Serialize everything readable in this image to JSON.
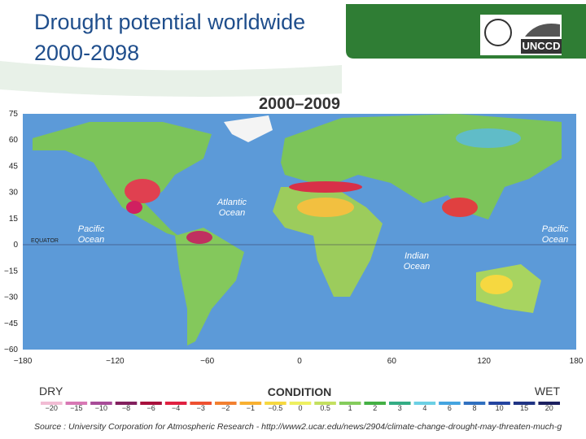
{
  "slide": {
    "title_lines": [
      "Drought potential worldwide",
      "2000-2098"
    ],
    "logo_text": "UNCCD",
    "map": {
      "title": "2000–2009",
      "lat_labels": [
        "75",
        "60",
        "45",
        "30",
        "15",
        "0",
        "−15",
        "−30",
        "−45",
        "−60"
      ],
      "lon_labels": [
        "−180",
        "−120",
        "−60",
        "0",
        "60",
        "120",
        "180"
      ],
      "equator_label": "EQUATOR",
      "ocean_labels": [
        [
          "Pacific",
          "Ocean"
        ],
        [
          "Atlantic",
          "Ocean"
        ],
        [
          "Indian",
          "Ocean"
        ],
        [
          "Pacific",
          "Ocean"
        ]
      ]
    },
    "legend": {
      "dry": "DRY",
      "title": "CONDITION",
      "wet": "WET",
      "items": [
        {
          "label": "−20",
          "color": "#f2bcd4"
        },
        {
          "label": "−15",
          "color": "#d878b4"
        },
        {
          "label": "−10",
          "color": "#a84c98"
        },
        {
          "label": "−8",
          "color": "#82205e"
        },
        {
          "label": "−6",
          "color": "#a8103c"
        },
        {
          "label": "−4",
          "color": "#e02040"
        },
        {
          "label": "−3",
          "color": "#ee5030"
        },
        {
          "label": "−2",
          "color": "#f28030"
        },
        {
          "label": "−1",
          "color": "#f8b030"
        },
        {
          "label": "−0.5",
          "color": "#f6d840"
        },
        {
          "label": "0",
          "color": "#eef060"
        },
        {
          "label": "0.5",
          "color": "#c4e060"
        },
        {
          "label": "1",
          "color": "#84cc5c"
        },
        {
          "label": "2",
          "color": "#44b044"
        },
        {
          "label": "3",
          "color": "#34ac84"
        },
        {
          "label": "4",
          "color": "#6cd0e4"
        },
        {
          "label": "6",
          "color": "#44a4e0"
        },
        {
          "label": "8",
          "color": "#3070c0"
        },
        {
          "label": "10",
          "color": "#2444a0"
        },
        {
          "label": "15",
          "color": "#203484"
        },
        {
          "label": "20",
          "color": "#1c2060"
        }
      ]
    },
    "source": "Source : University Corporation for Atmospheric Research - http://www2.ucar.edu/news/2904/climate-change-drought-may-threaten-much-g"
  }
}
